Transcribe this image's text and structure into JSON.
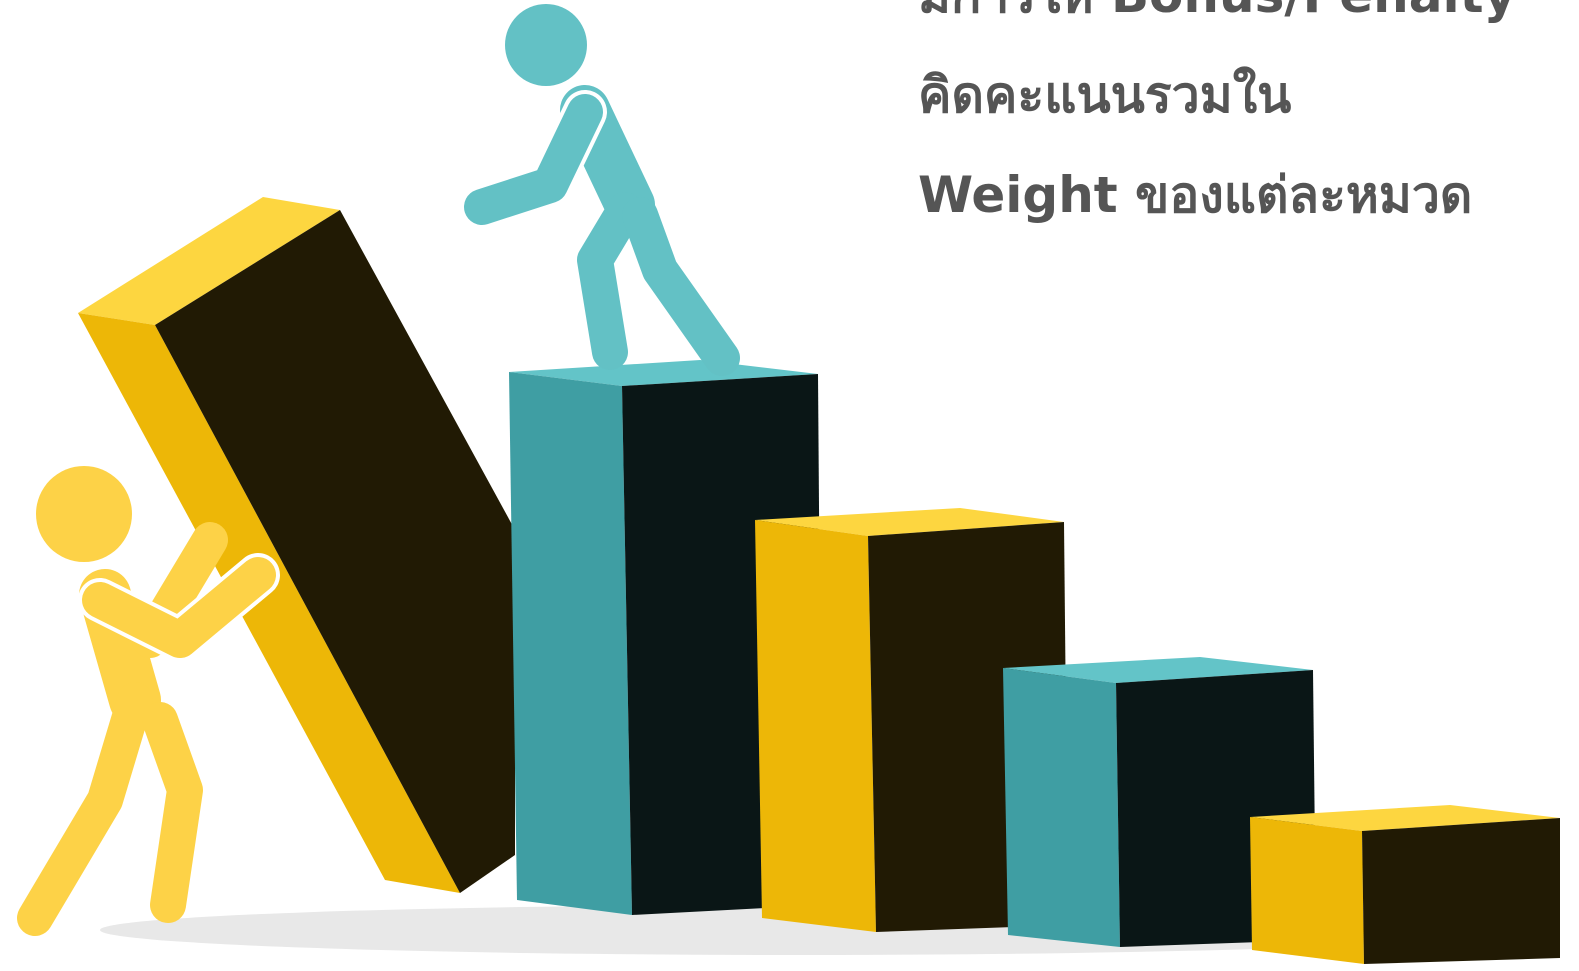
{
  "heading": {
    "lines": [
      "มีการให้ Bonus/Penalty",
      "คิดคะแนนรวมใน",
      "Weight ของแต่ละหมวด"
    ]
  }
}
